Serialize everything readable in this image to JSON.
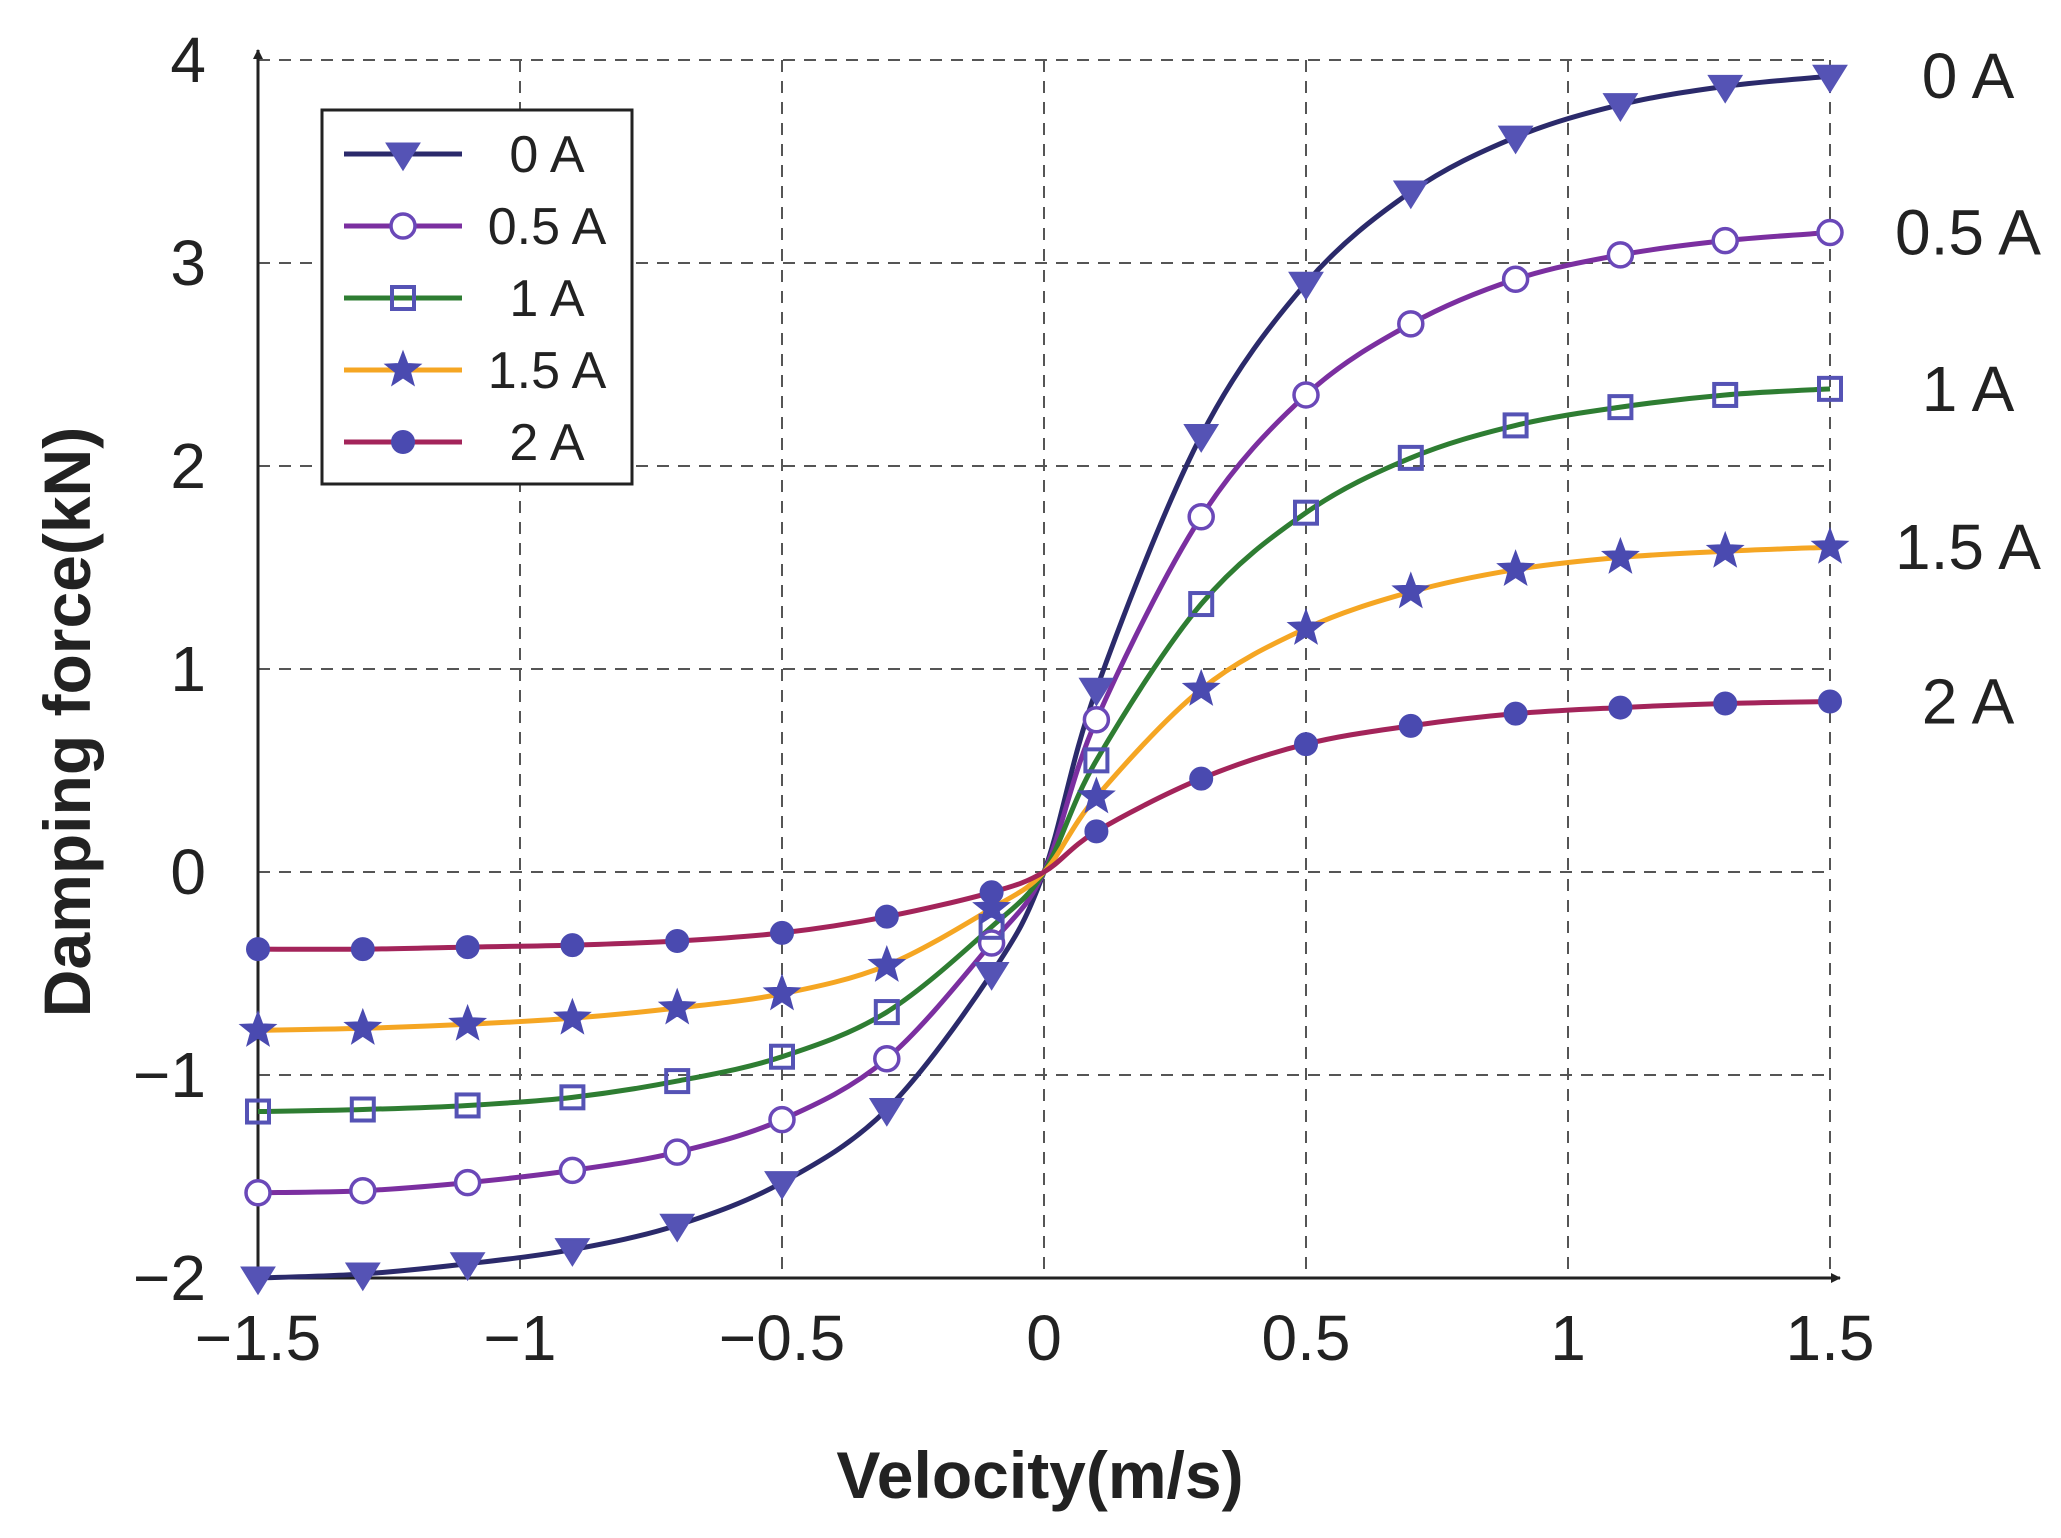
{
  "chart_data": {
    "type": "line",
    "title": "",
    "xlabel": "Velocity(m/s)",
    "ylabel": "Damping force(kN)",
    "xlim": [
      -1.5,
      1.5
    ],
    "ylim": [
      -2,
      4
    ],
    "xticks": [
      -1.5,
      -1,
      -0.5,
      0,
      0.5,
      1,
      1.5
    ],
    "xtick_labels": [
      "−1.5",
      "−1",
      "−0.5",
      "0",
      "0.5",
      "1",
      "1.5"
    ],
    "yticks": [
      -2,
      -1,
      0,
      1,
      2,
      3,
      4
    ],
    "ytick_labels": [
      "−2",
      "−1",
      "0",
      "1",
      "2",
      "3",
      "4"
    ],
    "grid": true,
    "legend_position": "top-left",
    "x": [
      -1.5,
      -1.3,
      -1.1,
      -0.9,
      -0.7,
      -0.5,
      -0.3,
      -0.1,
      0,
      0.1,
      0.3,
      0.5,
      0.7,
      0.9,
      1.1,
      1.3,
      1.5
    ],
    "series": [
      {
        "name": "0 A",
        "end_label": "0 A",
        "color": "#2b2a6b",
        "marker": "triangle-down",
        "marker_color": "#5553b5",
        "values": [
          -2.0,
          -1.98,
          -1.93,
          -1.86,
          -1.74,
          -1.53,
          -1.17,
          -0.5,
          0,
          0.9,
          2.15,
          2.9,
          3.35,
          3.62,
          3.78,
          3.87,
          3.92
        ]
      },
      {
        "name": "0.5 A",
        "end_label": "0.5 A",
        "color": "#7b2fa0",
        "marker": "circle-open",
        "marker_color": "#6a48b8",
        "values": [
          -1.58,
          -1.57,
          -1.53,
          -1.47,
          -1.38,
          -1.22,
          -0.92,
          -0.35,
          0,
          0.75,
          1.75,
          2.35,
          2.7,
          2.92,
          3.04,
          3.11,
          3.15
        ]
      },
      {
        "name": "1 A",
        "end_label": "1 A",
        "color": "#2e7d32",
        "marker": "square",
        "marker_color": "#5553b5",
        "values": [
          -1.18,
          -1.17,
          -1.15,
          -1.11,
          -1.03,
          -0.91,
          -0.69,
          -0.27,
          0,
          0.55,
          1.32,
          1.77,
          2.04,
          2.2,
          2.29,
          2.35,
          2.38
        ]
      },
      {
        "name": "1.5 A",
        "end_label": "1.5 A",
        "color": "#f5a623",
        "marker": "star",
        "marker_color": "#4a4ab0",
        "values": [
          -0.78,
          -0.77,
          -0.75,
          -0.72,
          -0.67,
          -0.6,
          -0.46,
          -0.18,
          0,
          0.37,
          0.9,
          1.2,
          1.38,
          1.49,
          1.55,
          1.58,
          1.6
        ]
      },
      {
        "name": "2 A",
        "end_label": "2 A",
        "color": "#a3245a",
        "marker": "circle-filled",
        "marker_color": "#4a4ab0",
        "values": [
          -0.38,
          -0.38,
          -0.37,
          -0.36,
          -0.34,
          -0.3,
          -0.22,
          -0.1,
          0,
          0.2,
          0.46,
          0.63,
          0.72,
          0.78,
          0.81,
          0.83,
          0.84
        ]
      }
    ]
  }
}
